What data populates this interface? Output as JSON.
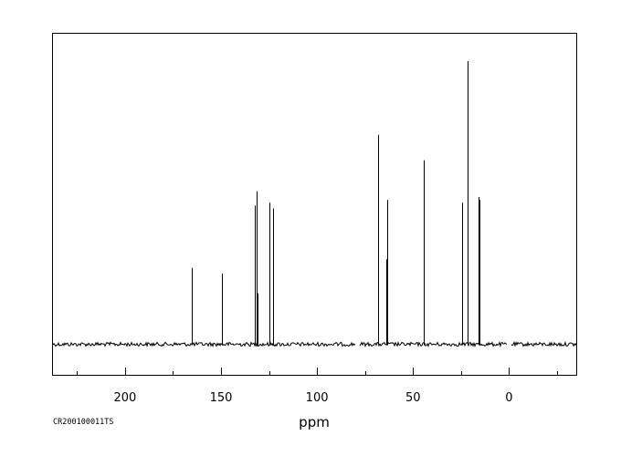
{
  "chart_data": {
    "type": "line",
    "subtype": "nmr-stick-spectrum",
    "xlabel": "ppm",
    "ylabel": "",
    "x_axis_reversed": true,
    "xlim": [
      237.5,
      -35
    ],
    "major_ticks": [
      200,
      150,
      100,
      50,
      0
    ],
    "minor_ticks": [
      225,
      175,
      125,
      75,
      25,
      -25
    ],
    "tick_labels": [
      "200",
      "150",
      "100",
      "50",
      "0"
    ],
    "baseline_gaps_ppm": [
      [
        78,
        80
      ],
      [
        -1,
        1
      ]
    ],
    "peaks": [
      {
        "ppm": 165.1,
        "intensity": 0.27
      },
      {
        "ppm": 149.7,
        "intensity": 0.25
      },
      {
        "ppm": 132.4,
        "intensity": 0.49
      },
      {
        "ppm": 131.5,
        "intensity": 0.54
      },
      {
        "ppm": 130.8,
        "intensity": 0.18
      },
      {
        "ppm": 124.8,
        "intensity": 0.5
      },
      {
        "ppm": 123.1,
        "intensity": 0.48
      },
      {
        "ppm": 68.3,
        "intensity": 0.74
      },
      {
        "ppm": 63.8,
        "intensity": 0.3
      },
      {
        "ppm": 63.3,
        "intensity": 0.51
      },
      {
        "ppm": 44.6,
        "intensity": 0.65
      },
      {
        "ppm": 24.6,
        "intensity": 0.5
      },
      {
        "ppm": 21.5,
        "intensity": 1.0
      },
      {
        "ppm": 15.9,
        "intensity": 0.52
      },
      {
        "ppm": 15.4,
        "intensity": 0.51
      }
    ],
    "grid": false,
    "legend": "none"
  },
  "footer": {
    "spectrum_code": "CR200100011TS"
  }
}
